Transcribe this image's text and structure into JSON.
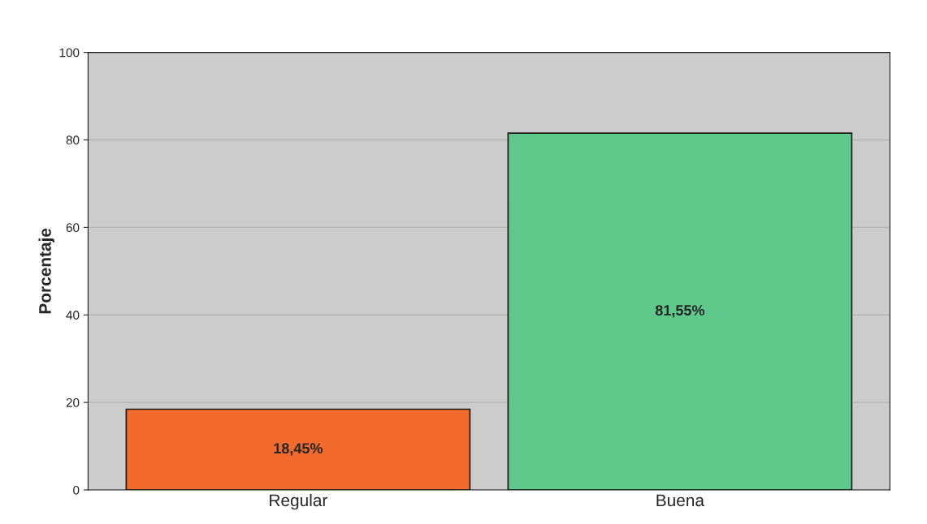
{
  "chart_data": {
    "type": "bar",
    "ylabel": "Porcentaje",
    "categories": [
      "Regular",
      "Buena"
    ],
    "values": [
      18.45,
      81.55
    ],
    "colors": [
      "#f26b2c",
      "#5ec98b"
    ],
    "value_labels": [
      "18,45%",
      "81,55%"
    ],
    "ylim": [
      0,
      100
    ],
    "yticks": [
      0,
      20,
      40,
      60,
      80,
      100
    ],
    "grid": "y"
  }
}
